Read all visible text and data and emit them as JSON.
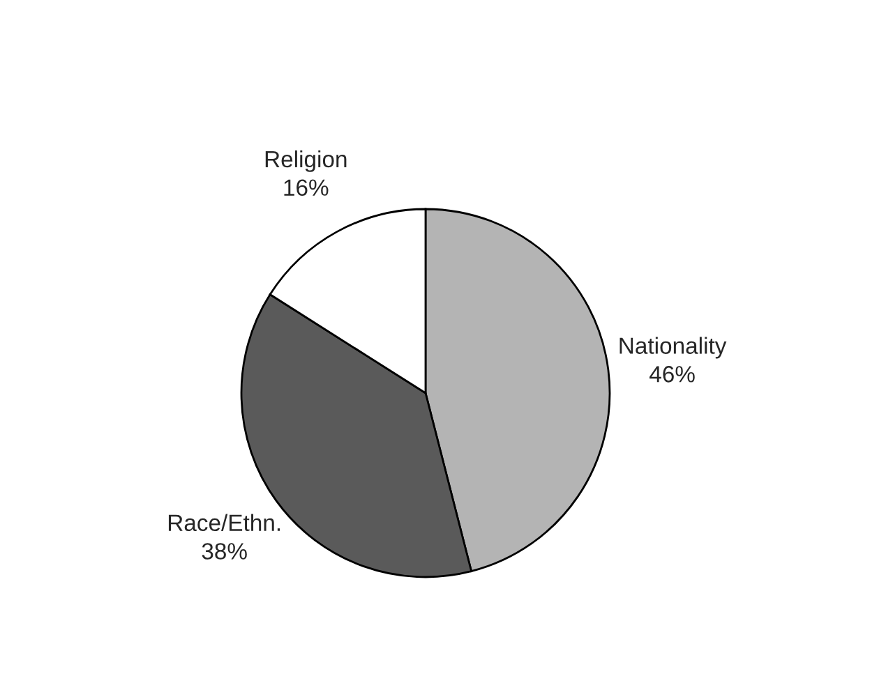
{
  "chart_data": {
    "type": "pie",
    "categories": [
      "Nationality",
      "Race/Ethn.",
      "Religion"
    ],
    "values": [
      46,
      38,
      16
    ],
    "value_labels": [
      "46%",
      "38%",
      "16%"
    ],
    "colors": [
      "#b4b4b4",
      "#5a5a5a",
      "#ffffff"
    ],
    "legend": false
  }
}
